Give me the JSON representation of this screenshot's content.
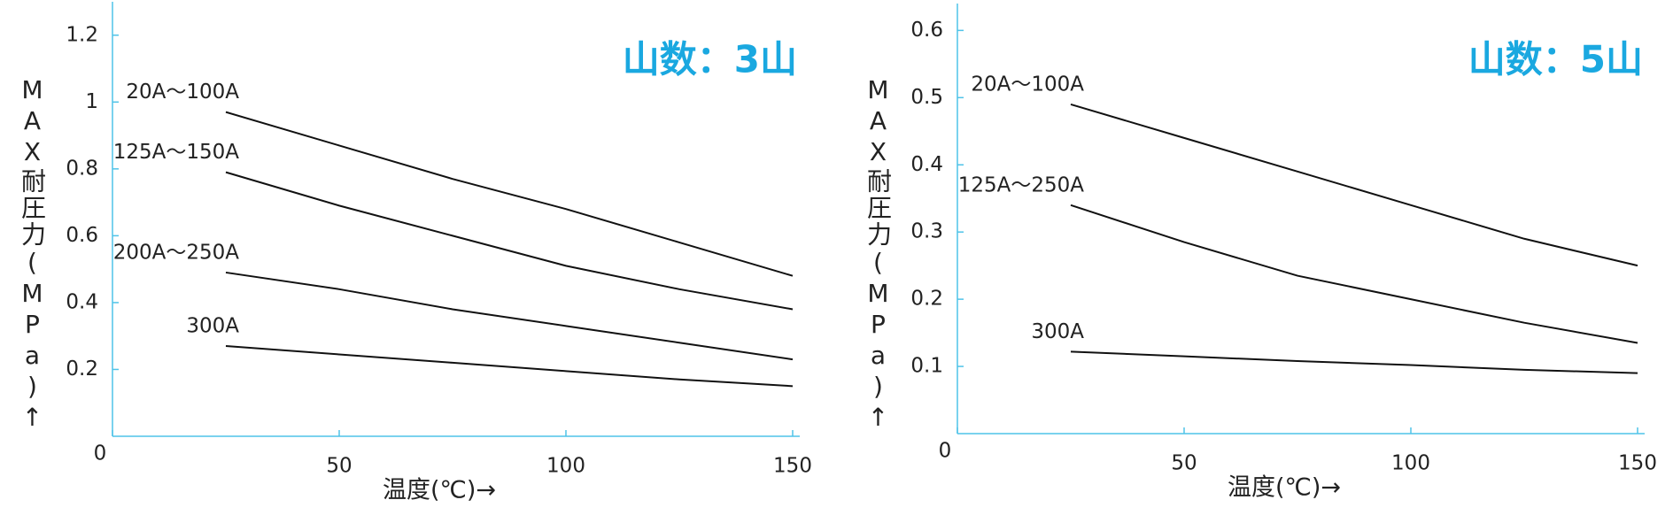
{
  "chart_data": [
    {
      "type": "line",
      "title": "山数：3山",
      "xlabel": "温度(℃)→",
      "ylabel": "MAX耐圧力(MPa)↑",
      "x": [
        25,
        50,
        75,
        100,
        125,
        150
      ],
      "series": [
        {
          "name": "20A～100A",
          "color": "#111111",
          "values": [
            0.97,
            0.87,
            0.77,
            0.68,
            0.58,
            0.48
          ]
        },
        {
          "name": "125A～150A",
          "color": "#111111",
          "values": [
            0.79,
            0.69,
            0.6,
            0.51,
            0.44,
            0.38
          ]
        },
        {
          "name": "200A～250A",
          "color": "#111111",
          "values": [
            0.49,
            0.44,
            0.38,
            0.33,
            0.28,
            0.23
          ]
        },
        {
          "name": "300A",
          "color": "#111111",
          "values": [
            0.27,
            0.245,
            0.22,
            0.195,
            0.17,
            0.15
          ]
        }
      ],
      "xlim": [
        0,
        150
      ],
      "xticks": [
        0,
        50,
        100,
        150
      ],
      "ylim": [
        0,
        1.3
      ],
      "yticks": [
        0.2,
        0.4,
        0.6,
        0.8,
        1.0,
        1.2
      ],
      "axis_color": "#4fc3e8"
    },
    {
      "type": "line",
      "title": "山数：5山",
      "xlabel": "温度(℃)→",
      "ylabel": "MAX耐圧力(MPa)↑",
      "x": [
        25,
        50,
        75,
        100,
        125,
        150
      ],
      "series": [
        {
          "name": "20A～100A",
          "color": "#111111",
          "values": [
            0.49,
            0.44,
            0.39,
            0.34,
            0.29,
            0.25
          ]
        },
        {
          "name": "125A～250A",
          "color": "#111111",
          "values": [
            0.34,
            0.285,
            0.235,
            0.2,
            0.165,
            0.135
          ]
        },
        {
          "name": "300A",
          "color": "#111111",
          "values": [
            0.122,
            0.115,
            0.108,
            0.102,
            0.095,
            0.09
          ]
        }
      ],
      "xlim": [
        0,
        150
      ],
      "xticks": [
        0,
        50,
        100,
        150
      ],
      "ylim": [
        0,
        0.64
      ],
      "yticks": [
        0.1,
        0.2,
        0.3,
        0.4,
        0.5,
        0.6
      ],
      "axis_color": "#4fc3e8"
    }
  ]
}
